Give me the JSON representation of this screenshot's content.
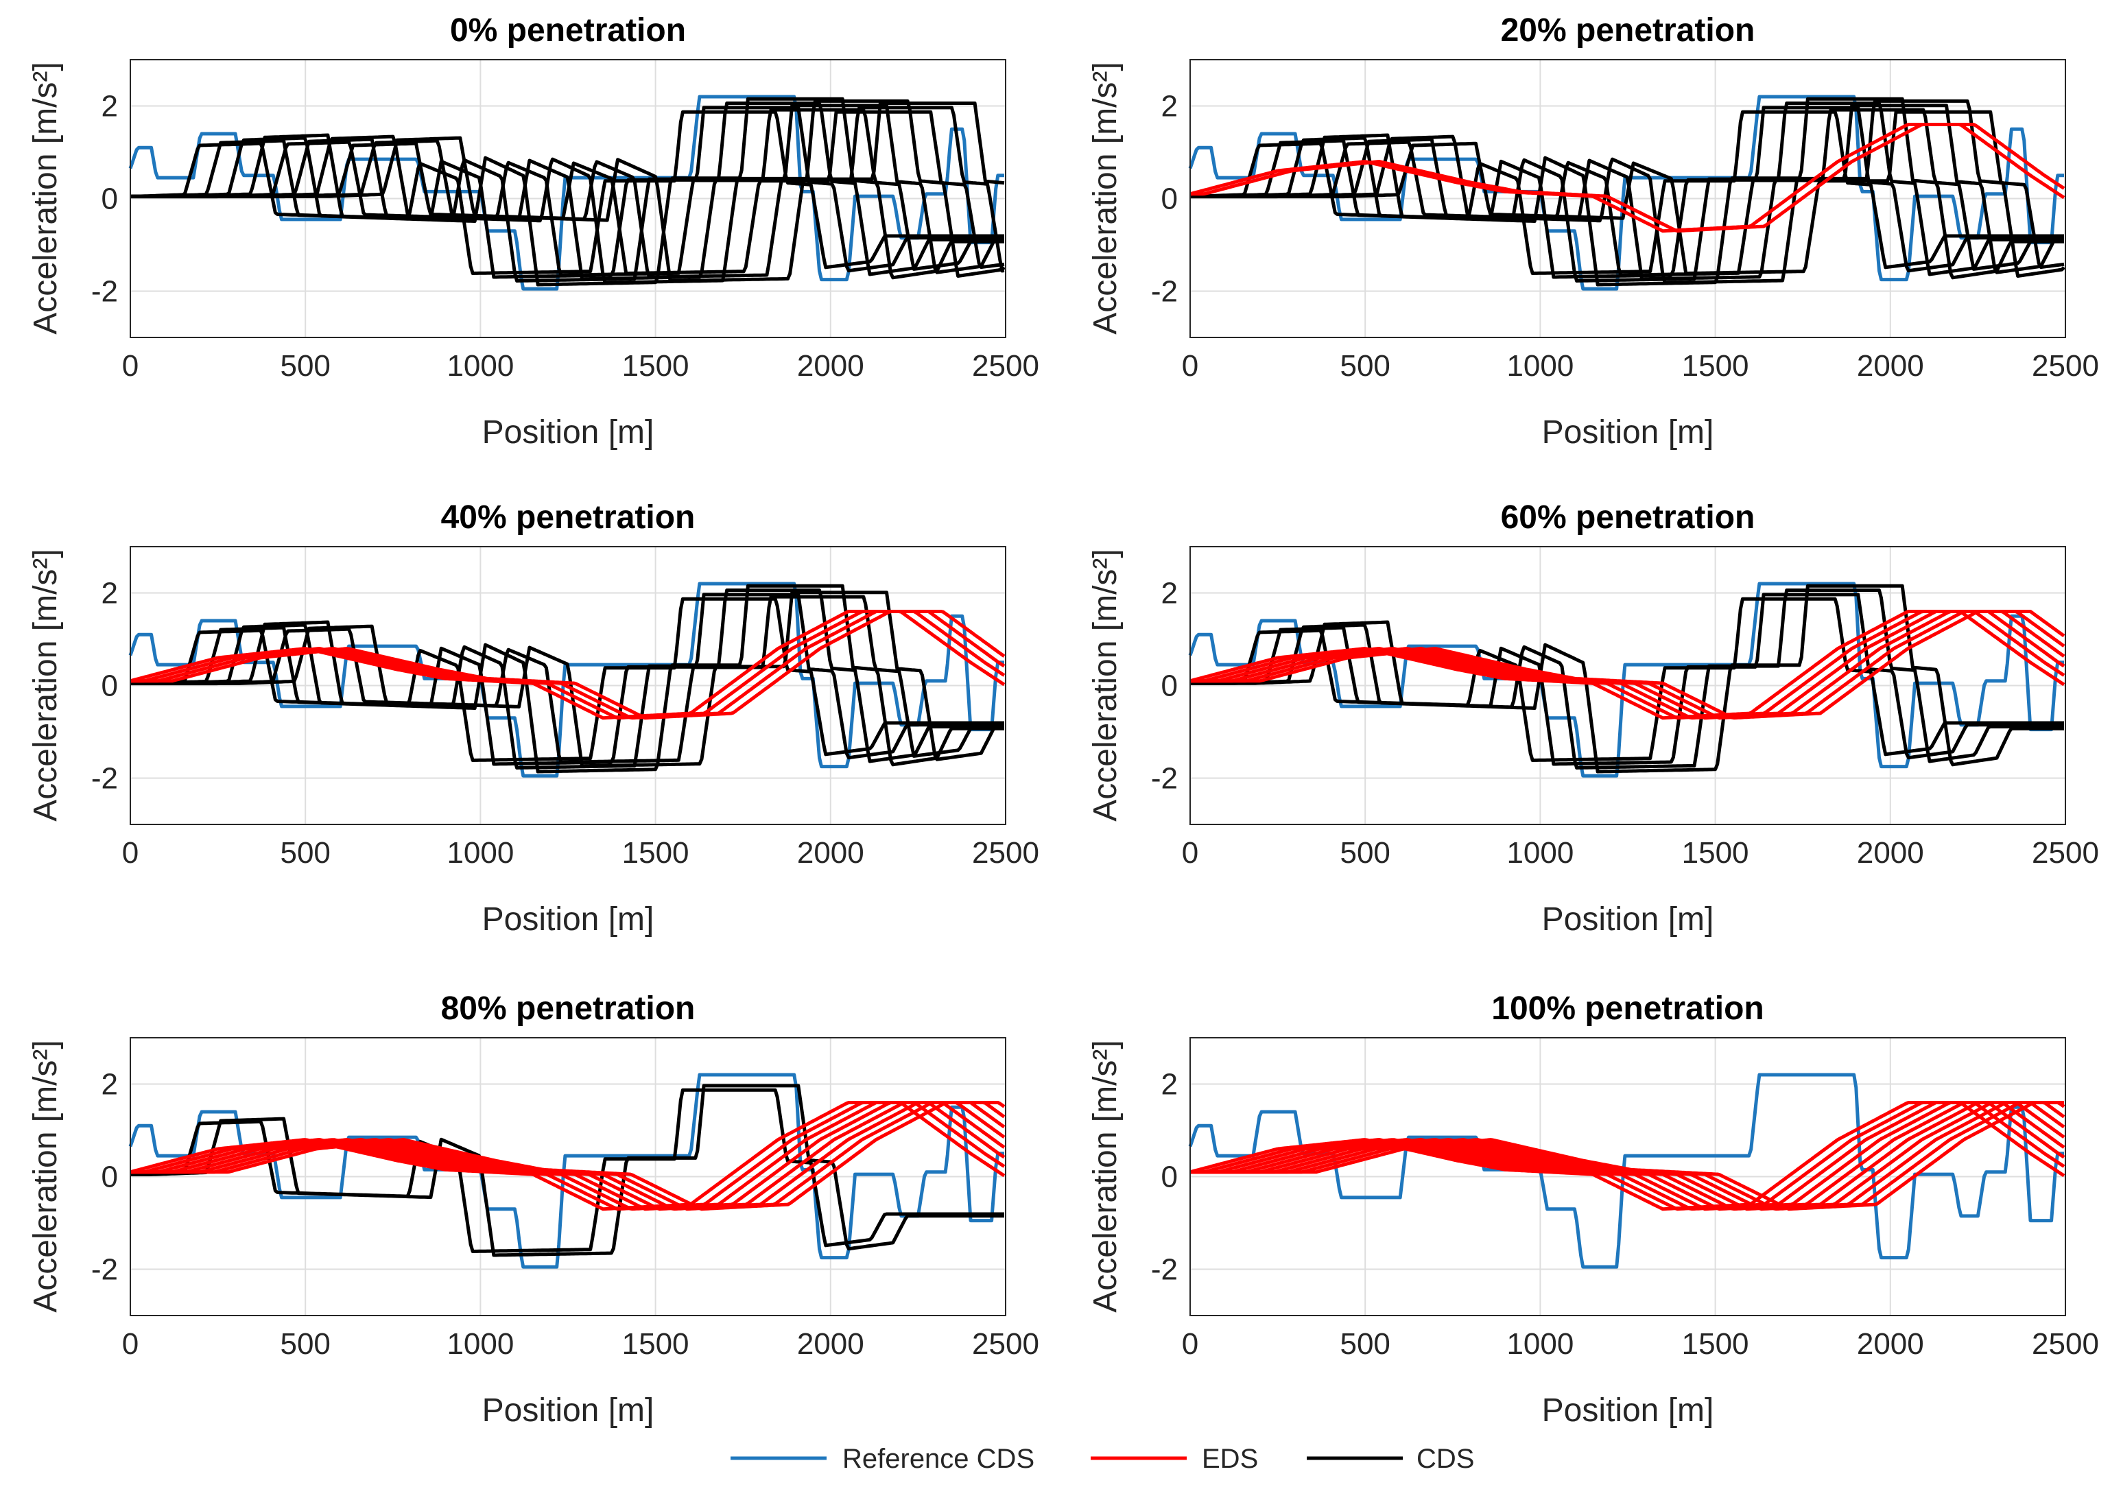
{
  "colors": {
    "reference": "#1f77bd",
    "eds": "#ff0000",
    "cds": "#000000",
    "grid": "#dedede",
    "axis": "#262626"
  },
  "legend": [
    {
      "label": "Reference CDS",
      "color": "#1f77bd"
    },
    {
      "label": "EDS",
      "color": "#ff0000"
    },
    {
      "label": "CDS",
      "color": "#000000"
    }
  ],
  "chart_data": [
    {
      "type": "line",
      "title": "0% penetration",
      "xlabel": "Position [m]",
      "ylabel": "Acceleration [m/s²]",
      "xlim": [
        0,
        2500
      ],
      "ylim": [
        -3,
        3
      ],
      "xticks": [
        0,
        500,
        1000,
        1500,
        2000,
        2500
      ],
      "yticks": [
        -2,
        0,
        2
      ],
      "grid": true,
      "eds_count": 0,
      "cds_count": 10
    },
    {
      "type": "line",
      "title": "20% penetration",
      "xlabel": "Position [m]",
      "ylabel": "Acceleration [m/s²]",
      "xlim": [
        0,
        2500
      ],
      "ylim": [
        -3,
        3
      ],
      "xticks": [
        0,
        500,
        1000,
        1500,
        2000,
        2500
      ],
      "yticks": [
        -2,
        0,
        2
      ],
      "grid": true,
      "eds_count": 2,
      "cds_count": 8
    },
    {
      "type": "line",
      "title": "40% penetration",
      "xlabel": "Position [m]",
      "ylabel": "Acceleration [m/s²]",
      "xlim": [
        0,
        2500
      ],
      "ylim": [
        -3,
        3
      ],
      "xticks": [
        0,
        500,
        1000,
        1500,
        2000,
        2500
      ],
      "yticks": [
        -2,
        0,
        2
      ],
      "grid": true,
      "eds_count": 4,
      "cds_count": 6
    },
    {
      "type": "line",
      "title": "60% penetration",
      "xlabel": "Position [m]",
      "ylabel": "Acceleration [m/s²]",
      "xlim": [
        0,
        2500
      ],
      "ylim": [
        -3,
        3
      ],
      "xticks": [
        0,
        500,
        1000,
        1500,
        2000,
        2500
      ],
      "yticks": [
        -2,
        0,
        2
      ],
      "grid": true,
      "eds_count": 6,
      "cds_count": 4
    },
    {
      "type": "line",
      "title": "80% penetration",
      "xlabel": "Position [m]",
      "ylabel": "Acceleration [m/s²]",
      "xlim": [
        0,
        2500
      ],
      "ylim": [
        -3,
        3
      ],
      "xticks": [
        0,
        500,
        1000,
        1500,
        2000,
        2500
      ],
      "yticks": [
        -2,
        0,
        2
      ],
      "grid": true,
      "eds_count": 8,
      "cds_count": 2
    },
    {
      "type": "line",
      "title": "100% penetration",
      "xlabel": "Position [m]",
      "ylabel": "Acceleration [m/s²]",
      "xlim": [
        0,
        2500
      ],
      "ylim": [
        -3,
        3
      ],
      "xticks": [
        0,
        500,
        1000,
        1500,
        2000,
        2500
      ],
      "yticks": [
        -2,
        0,
        2
      ],
      "grid": true,
      "eds_count": 10,
      "cds_count": 0
    }
  ],
  "reference_profile": [
    [
      0,
      0.65
    ],
    [
      20,
      1.1
    ],
    [
      60,
      1.1
    ],
    [
      75,
      0.45
    ],
    [
      180,
      0.45
    ],
    [
      200,
      1.4
    ],
    [
      300,
      1.4
    ],
    [
      320,
      0.5
    ],
    [
      410,
      0.5
    ],
    [
      430,
      -0.45
    ],
    [
      600,
      -0.45
    ],
    [
      620,
      0.85
    ],
    [
      820,
      0.85
    ],
    [
      840,
      0.15
    ],
    [
      1000,
      0.15
    ],
    [
      1020,
      -0.7
    ],
    [
      1100,
      -0.7
    ],
    [
      1120,
      -1.95
    ],
    [
      1220,
      -1.95
    ],
    [
      1240,
      0.45
    ],
    [
      1600,
      0.45
    ],
    [
      1625,
      2.2
    ],
    [
      1900,
      2.2
    ],
    [
      1915,
      0.15
    ],
    [
      1950,
      0.15
    ],
    [
      1970,
      -1.75
    ],
    [
      2050,
      -1.75
    ],
    [
      2070,
      0.05
    ],
    [
      2180,
      0.05
    ],
    [
      2200,
      -0.85
    ],
    [
      2250,
      -0.85
    ],
    [
      2270,
      0.1
    ],
    [
      2330,
      0.1
    ],
    [
      2345,
      1.5
    ],
    [
      2380,
      1.5
    ],
    [
      2400,
      -0.95
    ],
    [
      2460,
      -0.95
    ],
    [
      2475,
      0.5
    ],
    [
      2500,
      0.5
    ]
  ],
  "cds_shape": [
    [
      0,
      0.05
    ],
    [
      160,
      0.1
    ],
    [
      200,
      1.35
    ],
    [
      380,
      1.4
    ],
    [
      420,
      -0.4
    ],
    [
      800,
      -0.5
    ],
    [
      830,
      0.9
    ],
    [
      940,
      0.5
    ],
    [
      980,
      -1.9
    ],
    [
      1320,
      -1.85
    ],
    [
      1360,
      0.45
    ],
    [
      1560,
      0.45
    ],
    [
      1580,
      2.2
    ],
    [
      1850,
      2.2
    ],
    [
      1880,
      0.4
    ],
    [
      1950,
      0.35
    ],
    [
      1990,
      -1.75
    ],
    [
      2120,
      -1.6
    ],
    [
      2160,
      -0.95
    ],
    [
      2500,
      -0.95
    ]
  ],
  "eds_shape": [
    [
      0,
      0.1
    ],
    [
      250,
      0.6
    ],
    [
      500,
      0.8
    ],
    [
      760,
      0.35
    ],
    [
      900,
      0.15
    ],
    [
      1150,
      0.05
    ],
    [
      1350,
      -0.7
    ],
    [
      1600,
      -0.6
    ],
    [
      1850,
      0.8
    ],
    [
      2050,
      1.6
    ],
    [
      2200,
      1.6
    ],
    [
      2400,
      0.5
    ],
    [
      2500,
      0.0
    ]
  ]
}
